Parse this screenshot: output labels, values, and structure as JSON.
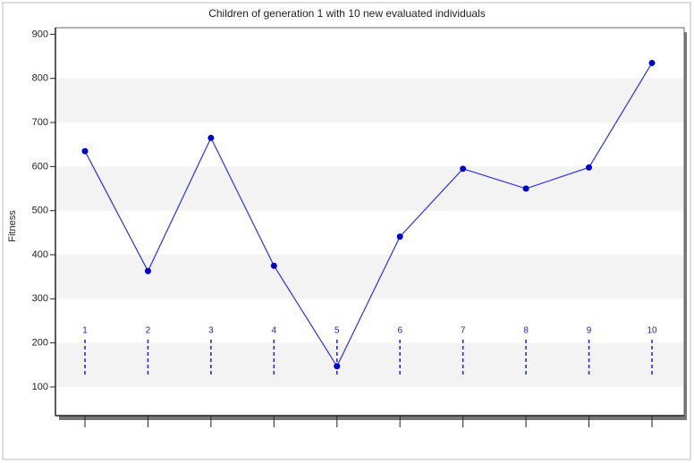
{
  "chart_data": {
    "type": "line",
    "title": "Children of generation 1 with 10 new evaluated individuals",
    "y_label": "Fitness",
    "categories": [
      "1",
      "2",
      "3",
      "4",
      "5",
      "6",
      "7",
      "8",
      "9",
      "10"
    ],
    "values": [
      635,
      363,
      665,
      375,
      147,
      441,
      595,
      550,
      598,
      835
    ],
    "color": "#2f2fe8",
    "marker_color": "#0000cc",
    "ylim": [
      35,
      915
    ],
    "yticks": [
      100,
      200,
      300,
      400,
      500,
      600,
      700,
      800,
      900
    ],
    "grid_bands": true
  }
}
